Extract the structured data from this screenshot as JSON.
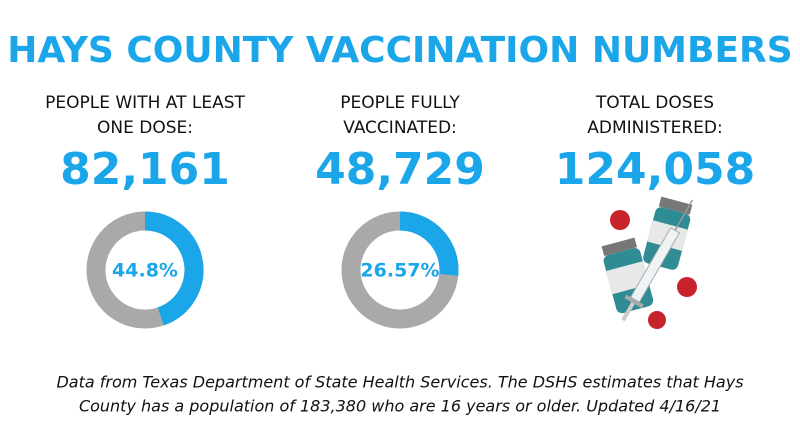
{
  "header": {
    "title": "HAYS COUNTY VACCINATION NUMBERS"
  },
  "stats": [
    {
      "label": [
        "PEOPLE WITH AT LEAST",
        "ONE DOSE:"
      ],
      "value": "82,161",
      "donut": {
        "value": 44.8,
        "label": "44.8%"
      }
    },
    {
      "label": [
        "PEOPLE FULLY",
        "VACCINATED:"
      ],
      "value": "48,729",
      "donut": {
        "value": 26.57,
        "label": "26.57%"
      }
    },
    {
      "label": [
        "TOTAL DOSES",
        "ADMINISTERED:"
      ],
      "value": "124,058"
    }
  ],
  "footnote": [
    "Data from Texas Department of State Health Services. The DSHS estimates that Hays",
    "County has a population of 183,380 who are 16 years or older. Updated 4/16/21"
  ]
}
